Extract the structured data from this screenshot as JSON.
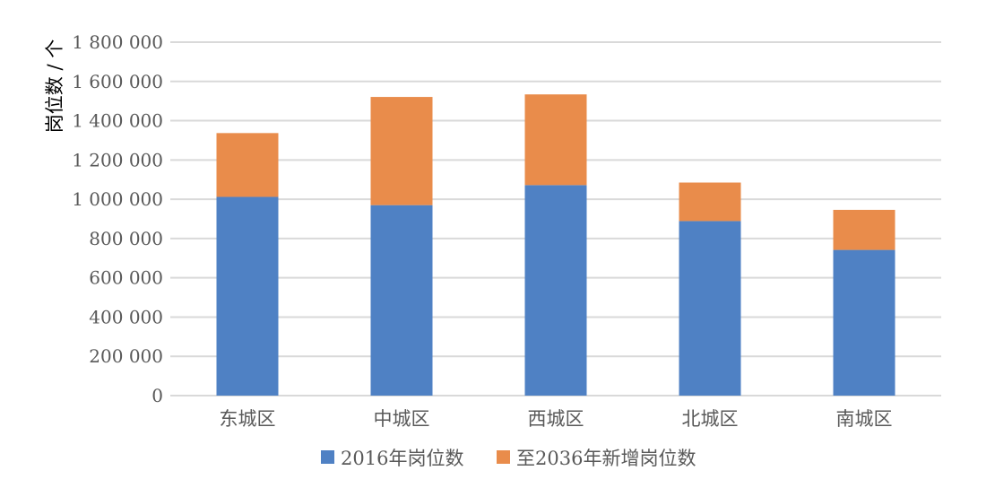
{
  "chart_data": {
    "type": "bar",
    "stacked": true,
    "categories": [
      "东城区",
      "中城区",
      "西城区",
      "北城区",
      "南城区"
    ],
    "series": [
      {
        "name": "2016年岗位数",
        "color": "#4f81c4",
        "values": [
          1012000,
          970000,
          1072000,
          889000,
          742000
        ]
      },
      {
        "name": "至2036年新增岗位数",
        "color": "#e98c4b",
        "values": [
          325000,
          551000,
          462000,
          196000,
          204000
        ]
      }
    ],
    "ylabel": "岗位数 / 个",
    "xlabel": "",
    "ylim": [
      0,
      1800000
    ],
    "yticks": [
      0,
      200000,
      400000,
      600000,
      800000,
      1000000,
      1200000,
      1400000,
      1600000,
      1800000
    ],
    "ytick_labels": [
      "0",
      "200 000",
      "400 000",
      "600 000",
      "800 000",
      "1 000 000",
      "1 200 000",
      "1 400 000",
      "1 600 000",
      "1 800 000"
    ],
    "grid": true,
    "legend_position": "bottom"
  }
}
